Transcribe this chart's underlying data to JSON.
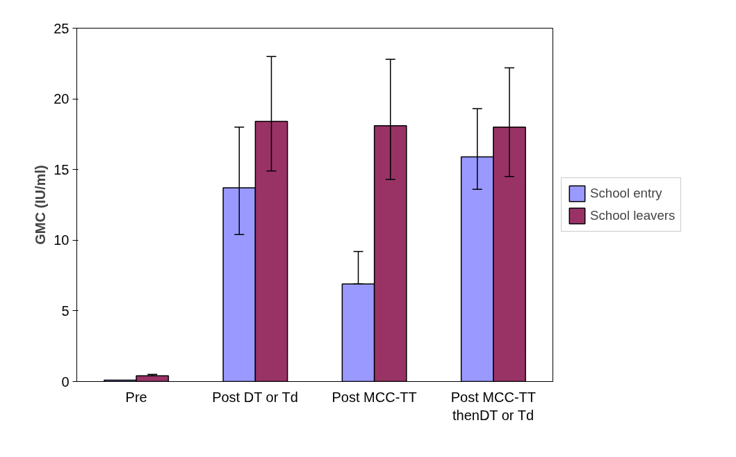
{
  "chart_data": {
    "type": "bar",
    "ylabel": "GMC (IU/ml)",
    "categories": [
      "Pre",
      "Post DT or Td",
      "Post MCC-TT",
      "Post MCC-TT\nthenDT or Td"
    ],
    "series": [
      {
        "name": "School entry",
        "color": "#9999ff",
        "values": [
          0.1,
          13.7,
          6.9,
          15.9
        ],
        "errors": [
          null,
          [
            10.4,
            18.0
          ],
          [
            6.9,
            9.2
          ],
          [
            13.6,
            19.3
          ]
        ]
      },
      {
        "name": "School leavers",
        "color": "#993366",
        "values": [
          0.4,
          18.4,
          18.1,
          18.0
        ],
        "errors": [
          [
            0.4,
            0.5
          ],
          [
            14.9,
            23.0
          ],
          [
            14.3,
            22.8
          ],
          [
            14.5,
            22.2
          ]
        ]
      }
    ],
    "ylim": [
      0,
      25
    ],
    "yticks": [
      0,
      5,
      10,
      15,
      20,
      25
    ],
    "grid": false,
    "legend": "right"
  }
}
